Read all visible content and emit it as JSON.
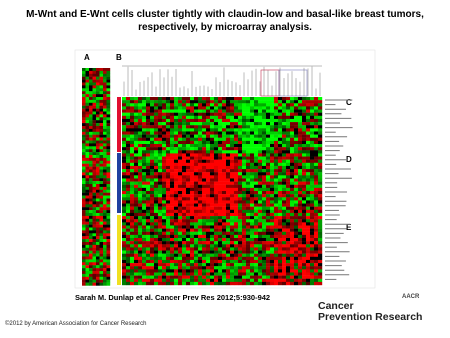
{
  "header": {
    "title": "M-Wnt and E-Wnt cells cluster tightly with claudin-low and basal-like breast tumors, respectively, by microarray analysis."
  },
  "figure": {
    "panels": [
      "A",
      "B",
      "C",
      "D",
      "E"
    ]
  },
  "citation": "Sarah M. Dunlap et al. Cancer Prev Res 2012;5:930-942",
  "footer": {
    "copyright": "©2012 by American Association for Cancer Research",
    "logo_small": "AACR",
    "logo_line1": "Cancer",
    "logo_line2": "Prevention Research"
  }
}
